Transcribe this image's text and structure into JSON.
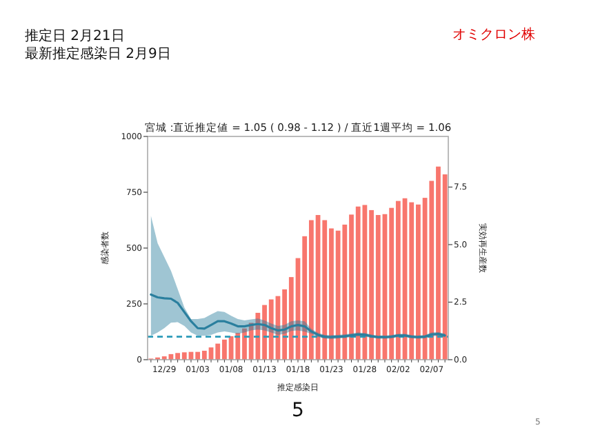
{
  "chart_data": {
    "type": "bar",
    "title": "宮城 :直近推定値 = 1.05 ( 0.98 - 1.12 ) / 直近1週平均 = 1.06",
    "xlabel": "推定感染日",
    "ylabel": "感染者数",
    "y2label": "実効再生産数",
    "annotations": [
      "推定日  2月21日",
      "最新推定感染日  2月9日",
      "オミクロン株",
      "5",
      "5"
    ],
    "categories": [
      null,
      null,
      "12/29",
      null,
      null,
      null,
      null,
      "01/03",
      null,
      null,
      null,
      null,
      "01/08",
      null,
      null,
      null,
      null,
      "01/13",
      null,
      null,
      null,
      null,
      "01/18",
      null,
      null,
      null,
      null,
      "01/23",
      null,
      null,
      null,
      null,
      "01/28",
      null,
      null,
      null,
      null,
      "02/02",
      null,
      null,
      null,
      null,
      "02/07",
      null,
      null
    ],
    "series": [
      {
        "color": "#f8766d",
        "values": [
          5,
          10,
          15,
          25,
          30,
          33,
          35,
          35,
          40,
          55,
          72,
          90,
          105,
          120,
          140,
          165,
          210,
          245,
          270,
          285,
          315,
          370,
          455,
          553,
          625,
          648,
          625,
          588,
          578,
          605,
          650,
          686,
          693,
          670,
          648,
          652,
          680,
          711,
          723,
          705,
          695,
          725,
          801,
          865,
          830
        ]
      },
      {
        "type": "line",
        "axis": "y2",
        "color": "#2a7f9e",
        "values": [
          2.83,
          2.71,
          2.67,
          2.65,
          2.47,
          2.07,
          1.67,
          1.37,
          1.35,
          1.51,
          1.67,
          1.67,
          1.57,
          1.45,
          1.45,
          1.51,
          1.55,
          1.51,
          1.37,
          1.27,
          1.31,
          1.45,
          1.51,
          1.45,
          1.23,
          1.08,
          1.0,
          0.98,
          1.0,
          1.02,
          1.06,
          1.1,
          1.08,
          1.02,
          0.98,
          0.98,
          1.0,
          1.05,
          1.05,
          1.0,
          0.98,
          1.0,
          1.1,
          1.12,
          1.05
        ],
        "lower": [
          1.04,
          1.18,
          1.37,
          1.61,
          1.63,
          1.47,
          1.18,
          1.04,
          1.04,
          1.08,
          1.18,
          1.23,
          1.18,
          1.12,
          1.18,
          1.27,
          1.31,
          1.27,
          1.18,
          1.08,
          1.12,
          1.25,
          1.27,
          1.22,
          1.12,
          0.99,
          0.92,
          0.9,
          0.92,
          0.94,
          0.98,
          1.02,
          1.0,
          0.95,
          0.91,
          0.91,
          0.93,
          0.98,
          0.98,
          0.93,
          0.91,
          0.93,
          1.02,
          1.04,
          0.97
        ],
        "upper": [
          6.25,
          5.06,
          4.46,
          3.86,
          3.07,
          2.27,
          1.77,
          1.77,
          1.81,
          1.97,
          2.11,
          2.07,
          1.91,
          1.77,
          1.71,
          1.75,
          1.79,
          1.71,
          1.57,
          1.47,
          1.51,
          1.67,
          1.71,
          1.67,
          1.34,
          1.17,
          1.08,
          1.06,
          1.08,
          1.1,
          1.14,
          1.18,
          1.16,
          1.09,
          1.05,
          1.05,
          1.07,
          1.12,
          1.12,
          1.07,
          1.05,
          1.07,
          1.18,
          1.2,
          1.13
        ]
      }
    ],
    "ylim": [
      0,
      1000
    ],
    "yticks": [
      0,
      250,
      500,
      750,
      1000
    ],
    "y2lim": [
      0,
      9.7
    ],
    "y2ticks": [
      {
        "value": 0,
        "label": "0.0"
      },
      {
        "value": 2.5,
        "label": "2.5"
      },
      {
        "value": 5,
        "label": "5.0"
      },
      {
        "value": 7.5,
        "label": "7.5"
      }
    ],
    "ref_lines": [
      {
        "axis": "y2",
        "value": 1,
        "color": "#2a9ab8",
        "line_style": "dashed"
      }
    ]
  }
}
